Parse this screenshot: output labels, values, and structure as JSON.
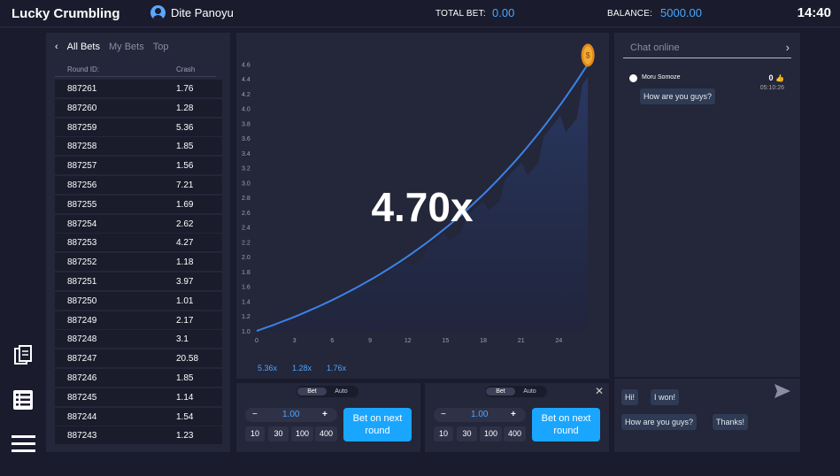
{
  "app": {
    "title": "Lucky Crumbling",
    "user": "Dite Panoyu",
    "time": "14:40"
  },
  "header": {
    "total_bet_label": "TOTAL BET:",
    "total_bet_value": "0.00",
    "balance_label": "BALANCE:",
    "balance_value": "5000.00"
  },
  "bets": {
    "tabs": [
      "All Bets",
      "My Bets",
      "Top"
    ],
    "columns": [
      "Round ID:",
      "Crash"
    ],
    "rows": [
      [
        "887261",
        "1.76"
      ],
      [
        "887260",
        "1.28"
      ],
      [
        "887259",
        "5.36"
      ],
      [
        "887258",
        "1.85"
      ],
      [
        "887257",
        "1.56"
      ],
      [
        "887256",
        "7.21"
      ],
      [
        "887255",
        "1.69"
      ],
      [
        "887254",
        "2.62"
      ],
      [
        "887253",
        "4.27"
      ],
      [
        "887252",
        "1.18"
      ],
      [
        "887251",
        "3.97"
      ],
      [
        "887250",
        "1.01"
      ],
      [
        "887249",
        "2.17"
      ],
      [
        "887248",
        "3.1"
      ],
      [
        "887247",
        "20.58"
      ],
      [
        "887246",
        "1.85"
      ],
      [
        "887245",
        "1.14"
      ],
      [
        "887244",
        "1.54"
      ],
      [
        "887243",
        "1.23"
      ]
    ]
  },
  "chart_data": {
    "type": "area",
    "title": "",
    "xlabel": "",
    "ylabel": "",
    "x_ticks": [
      "0",
      "3",
      "6",
      "9",
      "12",
      "15",
      "18",
      "21",
      "24"
    ],
    "y_ticks": [
      "1.0",
      "1.2",
      "1.4",
      "1.6",
      "1.8",
      "2.0",
      "2.2",
      "2.4",
      "2.6",
      "2.8",
      "3.0",
      "3.2",
      "3.4",
      "3.6",
      "3.8",
      "4.0",
      "4.2",
      "4.4",
      "4.6"
    ],
    "xlim": [
      0,
      26.5
    ],
    "ylim": [
      1.0,
      4.7
    ],
    "multiplier": "4.70x",
    "curve_end_x": 26.3,
    "curve_end_y": 4.6,
    "grid": false
  },
  "history": [
    "5.36x",
    "1.28x",
    "1.76x"
  ],
  "betbox_left": {
    "toggle_on": "Bet",
    "toggle_off": "Auto",
    "minus": "−",
    "amount": "1.00",
    "plus": "+",
    "quick": [
      "10",
      "30",
      "100",
      "400"
    ],
    "button": [
      "Bet on next",
      "round"
    ]
  },
  "betbox_right": {
    "toggle_on": "Bet",
    "toggle_off": "Auto",
    "minus": "−",
    "amount": "1.00",
    "plus": "+",
    "quick": [
      "10",
      "30",
      "100",
      "400"
    ],
    "button": [
      "Bet on next",
      "round"
    ],
    "close": "✕"
  },
  "chat": {
    "title": "Chat online",
    "message": {
      "user": "Moru Somoze",
      "likes": "0",
      "time": "05:10:26",
      "text": "How are you guys?"
    },
    "quick_replies": [
      "Hi!",
      "I won!",
      "How are you guys?",
      "Thanks!"
    ]
  },
  "colors": {
    "accent": "#1aa6ff",
    "curve": "#3b82e8",
    "background": "#1a1b2c",
    "panel": "#242639"
  }
}
